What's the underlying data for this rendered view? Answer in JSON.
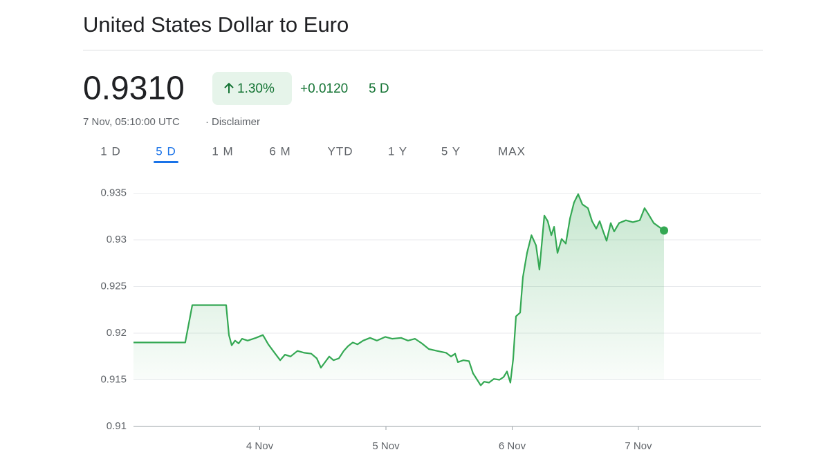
{
  "header": {
    "title": "United States Dollar to Euro"
  },
  "quote": {
    "price": "0.9310",
    "change_percent": "1.30%",
    "change": "+0.0120",
    "period": "5 D",
    "timestamp": "7 Nov, 05:10:00 UTC",
    "separator": "·",
    "disclaimer": "Disclaimer"
  },
  "tabs": {
    "items": [
      "1 D",
      "5 D",
      "1 M",
      "6 M",
      "YTD",
      "1 Y",
      "5 Y",
      "MAX"
    ],
    "active": 1
  },
  "chart_data": {
    "type": "line",
    "color": "#34a853",
    "grid": true,
    "x": [
      0,
      0.41,
      0.466,
      0.734,
      0.756,
      0.778,
      0.805,
      0.833,
      0.86,
      0.904,
      0.97,
      1.025,
      1.068,
      1.123,
      1.162,
      1.2,
      1.244,
      1.299,
      1.353,
      1.408,
      1.452,
      1.485,
      1.518,
      1.551,
      1.584,
      1.627,
      1.666,
      1.699,
      1.737,
      1.775,
      1.819,
      1.874,
      1.929,
      1.995,
      2.049,
      2.12,
      2.175,
      2.23,
      2.285,
      2.34,
      2.405,
      2.477,
      2.515,
      2.548,
      2.57,
      2.614,
      2.658,
      2.69,
      2.723,
      2.751,
      2.778,
      2.816,
      2.855,
      2.899,
      2.932,
      2.959,
      2.986,
      3.008,
      3.03,
      3.063,
      3.085,
      3.118,
      3.153,
      3.189,
      3.216,
      3.255,
      3.282,
      3.31,
      3.332,
      3.359,
      3.392,
      3.425,
      3.458,
      3.49,
      3.523,
      3.556,
      3.6,
      3.633,
      3.666,
      3.693,
      3.721,
      3.748,
      3.781,
      3.808,
      3.847,
      3.901,
      3.956,
      4.011,
      4.049,
      4.082,
      4.121,
      4.203
    ],
    "values": [
      0.919,
      0.919,
      0.923,
      0.923,
      0.9198,
      0.9187,
      0.9192,
      0.9189,
      0.9194,
      0.9192,
      0.9195,
      0.9198,
      0.9188,
      0.9178,
      0.9171,
      0.9177,
      0.9175,
      0.9181,
      0.9179,
      0.9178,
      0.9173,
      0.9163,
      0.9169,
      0.9175,
      0.9171,
      0.9173,
      0.9181,
      0.9186,
      0.919,
      0.9188,
      0.9192,
      0.9195,
      0.9192,
      0.9196,
      0.9194,
      0.9195,
      0.9192,
      0.9194,
      0.9189,
      0.9183,
      0.9181,
      0.9179,
      0.9175,
      0.9178,
      0.9169,
      0.9171,
      0.917,
      0.9157,
      0.915,
      0.9144,
      0.9148,
      0.9147,
      0.9151,
      0.915,
      0.9153,
      0.9159,
      0.9147,
      0.9172,
      0.9218,
      0.9222,
      0.926,
      0.9286,
      0.9305,
      0.9294,
      0.9268,
      0.9326,
      0.932,
      0.9305,
      0.9314,
      0.9286,
      0.9301,
      0.9296,
      0.9323,
      0.934,
      0.9349,
      0.9338,
      0.9334,
      0.932,
      0.9312,
      0.932,
      0.9309,
      0.9299,
      0.9318,
      0.9309,
      0.9318,
      0.9321,
      0.9319,
      0.9321,
      0.9334,
      0.9327,
      0.9318,
      0.931
    ],
    "xlim": [
      0,
      4.97
    ],
    "xticks": [
      {
        "value": 1,
        "label": "4 Nov"
      },
      {
        "value": 2,
        "label": "5 Nov"
      },
      {
        "value": 3,
        "label": "6 Nov"
      },
      {
        "value": 4,
        "label": "7 Nov"
      }
    ],
    "ylim": [
      0.91,
      0.9363
    ],
    "yticks": [
      0.91,
      0.915,
      0.92,
      0.925,
      0.93,
      0.935
    ]
  }
}
